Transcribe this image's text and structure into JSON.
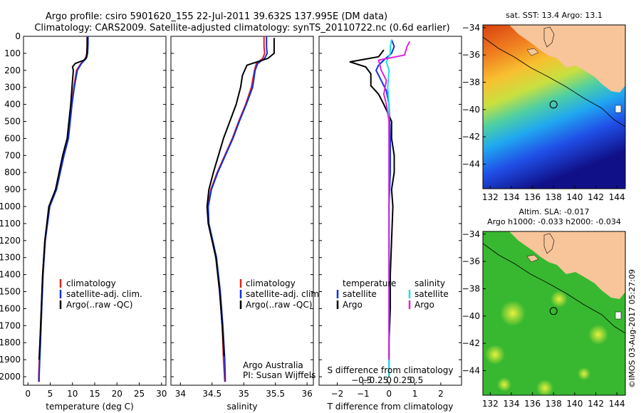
{
  "header": {
    "line1": "Argo profile: csiro 5901620_155 22-Jul-2011 39.632S 137.995E (DM data)",
    "line2": "Climatology: CARS2009. Satellite-adjusted climatology: synTS_20110722.nc (0.6d earlier)"
  },
  "colors": {
    "climatology": "#e02020",
    "satellite": "#1030e0",
    "argo": "#000000",
    "salinity_satellite": "#20e0e0",
    "salinity_argo": "#e020e0",
    "land": "#f8c49a"
  },
  "chart_data": [
    {
      "type": "line",
      "name": "temperature-profile",
      "xlabel": "temperature (deg C)",
      "ylabel": "",
      "xlim": [
        -1,
        31
      ],
      "ylim": [
        0,
        2050
      ],
      "y_inverted": true,
      "xticks": [
        0,
        5,
        10,
        15,
        20,
        25,
        30
      ],
      "yticks": [
        0,
        100,
        200,
        300,
        400,
        500,
        600,
        700,
        800,
        900,
        1000,
        1100,
        1200,
        1300,
        1400,
        1500,
        1600,
        1700,
        1800,
        1900,
        2000
      ],
      "legend": [
        "climatology",
        "satellite-adj. clim.",
        "Argo(..raw -QC)"
      ],
      "series": [
        {
          "name": "climatology",
          "color_key": "climatology",
          "points": [
            [
              13.3,
              0
            ],
            [
              13.3,
              50
            ],
            [
              13.2,
              100
            ],
            [
              12.9,
              130
            ],
            [
              11.9,
              160
            ],
            [
              10.9,
              200
            ],
            [
              10.3,
              300
            ],
            [
              9.8,
              400
            ],
            [
              9.0,
              600
            ],
            [
              8.0,
              700
            ],
            [
              6.3,
              900
            ],
            [
              4.8,
              1000
            ],
            [
              3.8,
              1200
            ],
            [
              3.3,
              1400
            ],
            [
              3.0,
              1600
            ],
            [
              2.7,
              1800
            ],
            [
              2.4,
              2000
            ],
            [
              2.4,
              2030
            ]
          ]
        },
        {
          "name": "satellite-adj. clim.",
          "color_key": "satellite",
          "points": [
            [
              13.5,
              0
            ],
            [
              13.5,
              50
            ],
            [
              13.4,
              100
            ],
            [
              13.1,
              130
            ],
            [
              12.0,
              160
            ],
            [
              11.1,
              200
            ],
            [
              10.4,
              300
            ],
            [
              9.9,
              400
            ],
            [
              9.1,
              600
            ],
            [
              8.1,
              700
            ],
            [
              6.4,
              900
            ],
            [
              4.9,
              1000
            ],
            [
              3.9,
              1200
            ],
            [
              3.4,
              1400
            ],
            [
              3.1,
              1600
            ],
            [
              2.8,
              1800
            ],
            [
              2.5,
              2000
            ],
            [
              2.5,
              2030
            ]
          ]
        },
        {
          "name": "Argo(..raw -QC)",
          "color_key": "argo",
          "points": [
            [
              13.3,
              5
            ],
            [
              13.3,
              60
            ],
            [
              13.2,
              120
            ],
            [
              12.6,
              140
            ],
            [
              10.6,
              160
            ],
            [
              10.0,
              180
            ],
            [
              10.2,
              200
            ],
            [
              10.0,
              260
            ],
            [
              9.6,
              400
            ],
            [
              8.8,
              600
            ],
            [
              7.8,
              700
            ],
            [
              6.2,
              900
            ],
            [
              4.7,
              1000
            ],
            [
              3.8,
              1200
            ],
            [
              3.3,
              1400
            ],
            [
              3.0,
              1600
            ],
            [
              2.7,
              1800
            ],
            [
              2.5,
              1900
            ]
          ]
        }
      ]
    },
    {
      "type": "line",
      "name": "salinity-profile",
      "xlabel": "salinity",
      "ylabel": "",
      "xlim": [
        33.85,
        36.1
      ],
      "ylim": [
        0,
        2050
      ],
      "y_inverted": true,
      "xticks": [
        34,
        34.5,
        35,
        35.5,
        36
      ],
      "xtick_labels": [
        "34",
        "34.5",
        "35",
        "35.5",
        "36"
      ],
      "legend": [
        "climatology",
        "satellite-adj. clim.",
        "Argo(..raw -QC)"
      ],
      "annotations": [
        "Argo Australia",
        "PI: Susan Wijffels"
      ],
      "series": [
        {
          "name": "climatology",
          "color_key": "climatology",
          "points": [
            [
              35.32,
              0
            ],
            [
              35.32,
              60
            ],
            [
              35.33,
              100
            ],
            [
              35.3,
              130
            ],
            [
              35.2,
              160
            ],
            [
              35.17,
              200
            ],
            [
              35.12,
              300
            ],
            [
              35.03,
              400
            ],
            [
              34.92,
              500
            ],
            [
              34.82,
              600
            ],
            [
              34.7,
              700
            ],
            [
              34.58,
              800
            ],
            [
              34.48,
              900
            ],
            [
              34.43,
              1000
            ],
            [
              34.44,
              1100
            ],
            [
              34.5,
              1200
            ],
            [
              34.56,
              1300
            ],
            [
              34.62,
              1500
            ],
            [
              34.66,
              1700
            ],
            [
              34.68,
              1900
            ],
            [
              34.7,
              2030
            ]
          ]
        },
        {
          "name": "satellite-adj. clim.",
          "color_key": "satellite",
          "points": [
            [
              35.36,
              0
            ],
            [
              35.36,
              60
            ],
            [
              35.37,
              100
            ],
            [
              35.33,
              130
            ],
            [
              35.22,
              160
            ],
            [
              35.18,
              200
            ],
            [
              35.14,
              300
            ],
            [
              35.04,
              400
            ],
            [
              34.93,
              500
            ],
            [
              34.83,
              600
            ],
            [
              34.71,
              700
            ],
            [
              34.59,
              800
            ],
            [
              34.49,
              900
            ],
            [
              34.44,
              1000
            ],
            [
              34.45,
              1100
            ],
            [
              34.51,
              1200
            ],
            [
              34.57,
              1300
            ],
            [
              34.63,
              1500
            ],
            [
              34.67,
              1700
            ],
            [
              34.7,
              1900
            ],
            [
              34.71,
              2030
            ]
          ]
        },
        {
          "name": "Argo(..raw -QC)",
          "color_key": "argo",
          "points": [
            [
              35.48,
              10
            ],
            [
              35.48,
              60
            ],
            [
              35.48,
              100
            ],
            [
              35.38,
              130
            ],
            [
              35.05,
              170
            ],
            [
              34.98,
              230
            ],
            [
              34.95,
              300
            ],
            [
              34.88,
              400
            ],
            [
              34.78,
              500
            ],
            [
              34.68,
              600
            ],
            [
              34.6,
              700
            ],
            [
              34.52,
              800
            ],
            [
              34.45,
              900
            ],
            [
              34.42,
              1000
            ],
            [
              34.44,
              1100
            ],
            [
              34.5,
              1200
            ],
            [
              34.56,
              1300
            ],
            [
              34.62,
              1500
            ],
            [
              34.66,
              1700
            ],
            [
              34.69,
              1880
            ]
          ]
        }
      ]
    },
    {
      "type": "line",
      "name": "difference-profile",
      "xlabel": "T difference from climatology",
      "xlabel_top": "S difference from climatology",
      "xlim": [
        -2.7,
        2.8
      ],
      "ylim": [
        0,
        2050
      ],
      "y_inverted": true,
      "xticks": [
        -2,
        -1,
        0,
        1,
        2
      ],
      "top_ticks": [
        [
          -0.5,
          "−0.5"
        ],
        [
          -0.25,
          "−0.25"
        ],
        [
          0,
          "0"
        ],
        [
          0.25,
          "0.25"
        ],
        [
          0.5,
          "0.5"
        ]
      ],
      "top_tick_scale_note": "",
      "legend_left_title": "temperature",
      "legend_right_title": "salinity",
      "legend_left": [
        "satellite",
        "Argo"
      ],
      "legend_right": [
        "satellite",
        "Argo"
      ],
      "series": [
        {
          "name": "T satellite",
          "color_key": "satellite",
          "points": [
            [
              0.1,
              20
            ],
            [
              0.2,
              60
            ],
            [
              0.1,
              100
            ],
            [
              -0.2,
              140
            ],
            [
              -0.4,
              170
            ],
            [
              -0.5,
              200
            ],
            [
              -0.3,
              260
            ],
            [
              -0.1,
              320
            ],
            [
              0.0,
              400
            ],
            [
              0.05,
              600
            ],
            [
              0.05,
              800
            ],
            [
              0.0,
              1000
            ],
            [
              0.0,
              1200
            ],
            [
              0.0,
              1400
            ],
            [
              0.0,
              1600
            ],
            [
              0.0,
              1800
            ],
            [
              0.0,
              2000
            ]
          ]
        },
        {
          "name": "T Argo",
          "color_key": "argo",
          "points": [
            [
              -0.2,
              80
            ],
            [
              -0.4,
              120
            ],
            [
              -1.5,
              150
            ],
            [
              -0.9,
              180
            ],
            [
              -0.7,
              220
            ],
            [
              -0.7,
              290
            ],
            [
              -0.4,
              340
            ],
            [
              -0.2,
              400
            ],
            [
              0.1,
              500
            ],
            [
              0.1,
              600
            ],
            [
              0.2,
              700
            ],
            [
              0.2,
              800
            ],
            [
              0.1,
              900
            ],
            [
              0.15,
              1000
            ],
            [
              0.1,
              1200
            ],
            [
              0.05,
              1400
            ],
            [
              0.05,
              1600
            ],
            [
              0.0,
              1800
            ],
            [
              0.0,
              1900
            ]
          ]
        },
        {
          "name": "S satellite",
          "color_key": "salinity_satellite",
          "points": [
            [
              0.1,
              20
            ],
            [
              0.05,
              60
            ],
            [
              0.05,
              100
            ],
            [
              -0.1,
              150
            ],
            [
              0.0,
              200
            ],
            [
              -0.05,
              300
            ],
            [
              0.0,
              400
            ],
            [
              0.0,
              600
            ],
            [
              0.0,
              800
            ],
            [
              0.0,
              1000
            ],
            [
              0.0,
              1200
            ],
            [
              0.0,
              1400
            ],
            [
              0.0,
              1600
            ],
            [
              0.0,
              1800
            ],
            [
              0.0,
              2000
            ]
          ]
        },
        {
          "name": "S Argo",
          "color_key": "salinity_argo",
          "points": [
            [
              0.8,
              30
            ],
            [
              0.7,
              60
            ],
            [
              0.6,
              110
            ],
            [
              -0.4,
              140
            ],
            [
              -0.3,
              200
            ],
            [
              -0.1,
              260
            ],
            [
              -0.2,
              340
            ],
            [
              -0.1,
              400
            ],
            [
              0.0,
              500
            ],
            [
              0.0,
              700
            ],
            [
              0.0,
              900
            ],
            [
              0.0,
              1100
            ],
            [
              0.0,
              1300
            ],
            [
              0.0,
              1500
            ],
            [
              0.0,
              1700
            ],
            [
              0.0,
              1900
            ]
          ]
        }
      ]
    },
    {
      "type": "heatmap",
      "name": "sst-map",
      "title": "sat. SST: 13.4  Argo: 13.1",
      "xlim": [
        131.3,
        144.8
      ],
      "ylim": [
        -45.8,
        -33.8
      ],
      "xticks": [
        132,
        134,
        136,
        138,
        140,
        142,
        144
      ],
      "yticks": [
        -34,
        -36,
        -38,
        -40,
        -42,
        -44
      ],
      "float_position": [
        137.995,
        -39.632
      ]
    },
    {
      "type": "heatmap",
      "name": "sla-map",
      "title": "Altim. SLA: -0.017",
      "subtitle": "Argo h1000: -0.033 h2000: -0.034",
      "xlim": [
        131.3,
        144.8
      ],
      "ylim": [
        -45.8,
        -33.8
      ],
      "xticks": [
        132,
        134,
        136,
        138,
        140,
        142,
        144
      ],
      "yticks": [
        -34,
        -36,
        -38,
        -40,
        -42,
        -44
      ],
      "float_position": [
        137.995,
        -39.632
      ]
    }
  ],
  "credit": "©IMOS 03-Aug-2017 05:27:09"
}
